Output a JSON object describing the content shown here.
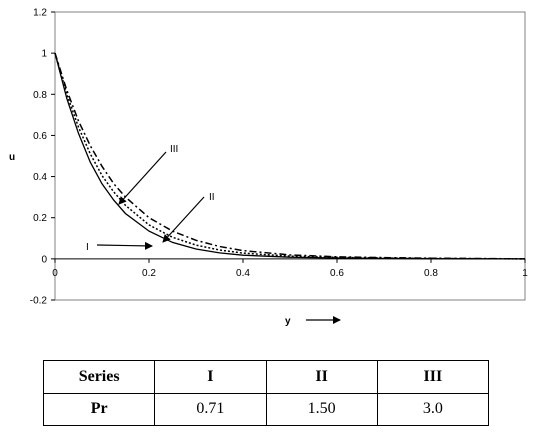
{
  "chart_data": {
    "type": "line",
    "title": "",
    "xlabel": "y",
    "ylabel": "u",
    "xlim": [
      0,
      1
    ],
    "ylim": [
      -0.2,
      1.2
    ],
    "x_ticks": [
      "0",
      "0.2",
      "0.4",
      "0.6",
      "0.8",
      "1"
    ],
    "y_ticks": [
      "-0.2",
      "0",
      "0.2",
      "0.4",
      "0.6",
      "0.8",
      "1",
      "1.2"
    ],
    "grid": false,
    "series": [
      {
        "name": "I",
        "style": "solid",
        "x": [
          0,
          0.025,
          0.05,
          0.075,
          0.1,
          0.125,
          0.15,
          0.2,
          0.25,
          0.3,
          0.35,
          0.4,
          0.5,
          0.6,
          0.7,
          0.8,
          0.9,
          1.0
        ],
        "y": [
          1.0,
          0.78,
          0.61,
          0.47,
          0.365,
          0.285,
          0.22,
          0.135,
          0.08,
          0.048,
          0.029,
          0.018,
          0.008,
          0.004,
          0.002,
          0.001,
          0.0005,
          0.0
        ]
      },
      {
        "name": "II",
        "style": "dotted",
        "x": [
          0,
          0.025,
          0.05,
          0.075,
          0.1,
          0.125,
          0.15,
          0.2,
          0.25,
          0.3,
          0.35,
          0.4,
          0.5,
          0.6,
          0.7,
          0.8,
          0.9,
          1.0
        ],
        "y": [
          1.0,
          0.8,
          0.64,
          0.51,
          0.405,
          0.325,
          0.26,
          0.165,
          0.105,
          0.067,
          0.043,
          0.028,
          0.013,
          0.007,
          0.004,
          0.002,
          0.001,
          0.0
        ]
      },
      {
        "name": "III",
        "style": "dash-dot",
        "x": [
          0,
          0.025,
          0.05,
          0.075,
          0.1,
          0.125,
          0.15,
          0.2,
          0.25,
          0.3,
          0.35,
          0.4,
          0.5,
          0.6,
          0.7,
          0.8,
          0.9,
          1.0
        ],
        "y": [
          1.0,
          0.82,
          0.67,
          0.55,
          0.45,
          0.365,
          0.3,
          0.2,
          0.135,
          0.09,
          0.06,
          0.04,
          0.019,
          0.01,
          0.006,
          0.003,
          0.0015,
          0.0
        ]
      }
    ],
    "annotations": [
      {
        "text": "I",
        "target_series": "I"
      },
      {
        "text": "II",
        "target_series": "II"
      },
      {
        "text": "III",
        "target_series": "III"
      }
    ]
  },
  "table": {
    "header": [
      "Series",
      "I",
      "II",
      "III"
    ],
    "rows": [
      [
        "Pr",
        "0.71",
        "1.50",
        "3.0"
      ]
    ]
  }
}
